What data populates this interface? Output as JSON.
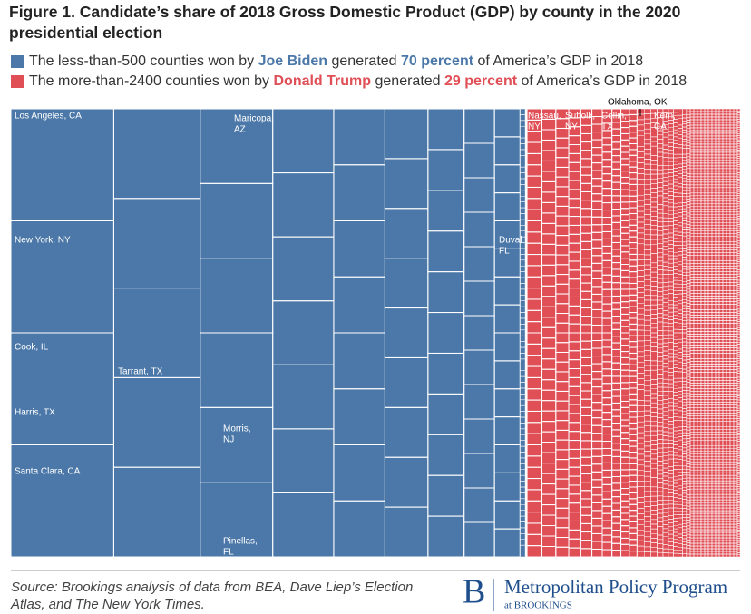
{
  "chart_data": {
    "type": "treemap",
    "title": "Figure 1. Candidate’s share of 2018 Gross Domestic Product (GDP) by county in the 2020 presidential election",
    "groups": [
      {
        "legend": [
          "The less-than-500 counties won by ",
          "Joe Biden",
          " generated ",
          "70 percent",
          " of America’s GDP in 2018"
        ],
        "value": 70,
        "color": "#4b78a8",
        "labels": [
          [
            "Los Angeles, CA"
          ],
          [
            "New York, NY"
          ],
          [
            "Cook, IL"
          ],
          [
            "Harris, TX"
          ],
          [
            "Santa Clara, CA"
          ],
          [
            "Tarrant, TX"
          ],
          [
            "Maricopa,",
            "AZ"
          ],
          [
            "Morris,",
            "NJ"
          ],
          [
            "Pinellas,",
            "FL"
          ],
          [
            "Duval",
            "FL"
          ]
        ]
      },
      {
        "legend": [
          "The more-than-2400 counties won by ",
          "Donald Trump",
          " generated ",
          "29 percent",
          " of America’s GDP in 2018"
        ],
        "value": 29,
        "color": "#e04e56",
        "labels": [
          [
            "Nassau,",
            "NY"
          ],
          [
            "Suffolk,",
            "NY"
          ],
          [
            "Collin,",
            "TX"
          ],
          [
            "Kern,",
            "CA"
          ],
          [
            "Oklahoma, OK"
          ]
        ]
      }
    ],
    "source": [
      "Source: Brookings analysis of data from BEA, Dave Liep’s Election",
      "Atlas, and The New York Times."
    ],
    "logo": {
      "mark": "B",
      "name": "Metropolitan Policy Program",
      "sub": "at BROOKINGS"
    }
  }
}
